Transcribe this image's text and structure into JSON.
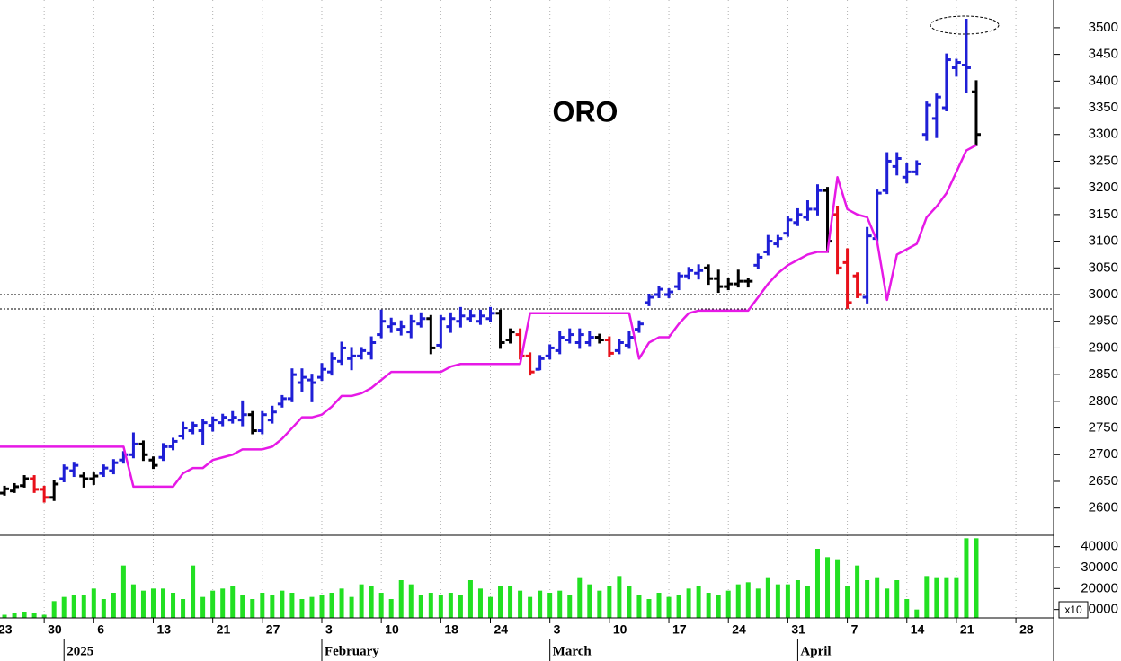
{
  "chart_data": {
    "type": "ohlc",
    "title": "ORO",
    "categories": [
      "23",
      null,
      null,
      null,
      null,
      "30",
      null,
      null,
      null,
      null,
      "6",
      null,
      null,
      null,
      null,
      null,
      "13",
      null,
      null,
      null,
      null,
      null,
      "21",
      null,
      null,
      null,
      null,
      "27",
      null,
      null,
      null,
      null,
      null,
      "3",
      null,
      null,
      null,
      null,
      null,
      "10",
      null,
      null,
      null,
      null,
      null,
      "18",
      null,
      null,
      null,
      null,
      "24",
      null,
      null,
      null,
      null,
      null,
      "3",
      null,
      null,
      null,
      null,
      null,
      "10",
      null,
      null,
      null,
      null,
      null,
      "17",
      null,
      null,
      null,
      null,
      null,
      "24",
      null,
      null,
      null,
      null,
      null,
      "31",
      null,
      null,
      null,
      null,
      null,
      "7",
      null,
      null,
      null,
      null,
      null,
      "14",
      null,
      null,
      null,
      null,
      "21",
      null,
      null,
      null,
      null,
      null,
      "28",
      null,
      null,
      null
    ],
    "months": [
      null,
      null,
      null,
      null,
      null,
      null,
      null,
      "2025",
      null,
      null,
      null,
      null,
      null,
      null,
      null,
      null,
      null,
      null,
      null,
      null,
      null,
      null,
      null,
      null,
      null,
      null,
      null,
      null,
      null,
      null,
      null,
      null,
      null,
      "February",
      null,
      null,
      null,
      null,
      null,
      null,
      null,
      null,
      null,
      null,
      null,
      null,
      null,
      null,
      null,
      null,
      null,
      null,
      null,
      null,
      null,
      null,
      "March",
      null,
      null,
      null,
      null,
      null,
      null,
      null,
      null,
      null,
      null,
      null,
      null,
      null,
      null,
      null,
      null,
      null,
      null,
      null,
      null,
      null,
      null,
      null,
      null,
      "April",
      null,
      null,
      null,
      null,
      null,
      null,
      null,
      null,
      null,
      null,
      null,
      null,
      null,
      null,
      null,
      null,
      null,
      null,
      null,
      null,
      null,
      null,
      null,
      null,
      null,
      null
    ],
    "open": [
      2630,
      2628,
      2632,
      2642,
      2655,
      2635,
      2620,
      2655,
      2670,
      2660,
      2655,
      2665,
      2670,
      2690,
      2700,
      2720,
      2690,
      2695,
      2715,
      2735,
      2745,
      2745,
      2755,
      2760,
      2765,
      2765,
      2775,
      2745,
      2765,
      2795,
      2805,
      2835,
      2840,
      2845,
      2855,
      2875,
      2880,
      2885,
      2890,
      2925,
      2940,
      2935,
      2930,
      2945,
      2955,
      2905,
      2940,
      2950,
      2955,
      2950,
      2955,
      2965,
      2915,
      2925,
      2885,
      2860,
      2885,
      2895,
      2915,
      2910,
      2910,
      2920,
      2915,
      2895,
      2905,
      2935,
      2985,
      3000,
      3000,
      3015,
      3035,
      3040,
      3050,
      3030,
      3015,
      3020,
      3025,
      3055,
      3080,
      3095,
      3115,
      3135,
      3145,
      3160,
      3195,
      3150,
      3060,
      3035,
      2995,
      3105,
      3195,
      3240,
      3220,
      3230,
      3300,
      3330,
      3350,
      3425,
      3430,
      3380,
      null,
      null,
      null,
      null,
      null,
      null,
      null
    ],
    "high": [
      2640,
      2640,
      2645,
      2660,
      2660,
      2640,
      2650,
      2680,
      2685,
      2665,
      2665,
      2680,
      2690,
      2705,
      2740,
      2725,
      2695,
      2720,
      2730,
      2760,
      2760,
      2765,
      2770,
      2775,
      2780,
      2800,
      2780,
      2780,
      2790,
      2810,
      2860,
      2860,
      2850,
      2870,
      2890,
      2910,
      2900,
      2900,
      2920,
      2970,
      2955,
      2950,
      2960,
      2965,
      2960,
      2960,
      2965,
      2975,
      2970,
      2970,
      2975,
      2970,
      2935,
      2935,
      2890,
      2885,
      2905,
      2930,
      2935,
      2935,
      2930,
      2925,
      2920,
      2915,
      2930,
      2950,
      3000,
      3015,
      3010,
      3040,
      3050,
      3055,
      3055,
      3045,
      3030,
      3045,
      3030,
      3075,
      3110,
      3110,
      3145,
      3160,
      3175,
      3205,
      3200,
      3165,
      3085,
      3040,
      3125,
      3195,
      3265,
      3265,
      3245,
      3250,
      3360,
      3375,
      3450,
      3440,
      3515,
      3400,
      null,
      null,
      null,
      null,
      null,
      null,
      null
    ],
    "low": [
      2620,
      2625,
      2630,
      2640,
      2630,
      2612,
      2615,
      2650,
      2660,
      2640,
      2645,
      2660,
      2665,
      2685,
      2695,
      2690,
      2675,
      2690,
      2710,
      2730,
      2740,
      2720,
      2745,
      2755,
      2760,
      2755,
      2740,
      2740,
      2760,
      2790,
      2800,
      2820,
      2800,
      2840,
      2850,
      2870,
      2860,
      2880,
      2880,
      2920,
      2930,
      2925,
      2920,
      2940,
      2890,
      2900,
      2930,
      2940,
      2950,
      2945,
      2950,
      2900,
      2910,
      2880,
      2850,
      2860,
      2880,
      2890,
      2910,
      2900,
      2905,
      2910,
      2885,
      2890,
      2900,
      2930,
      2980,
      2995,
      2995,
      3010,
      3030,
      3030,
      3020,
      3005,
      3010,
      3015,
      3015,
      3050,
      3075,
      3090,
      3110,
      3130,
      3140,
      3150,
      3080,
      3040,
      2975,
      2995,
      2985,
      3100,
      3190,
      3225,
      3210,
      3225,
      3290,
      3295,
      3345,
      3410,
      3380,
      3280,
      null,
      null,
      null,
      null,
      null,
      null,
      null
    ],
    "close": [
      2635,
      2636,
      2640,
      2655,
      2635,
      2620,
      2645,
      2675,
      2680,
      2655,
      2660,
      2675,
      2685,
      2700,
      2720,
      2700,
      2680,
      2715,
      2725,
      2750,
      2755,
      2760,
      2765,
      2770,
      2770,
      2775,
      2745,
      2775,
      2780,
      2805,
      2850,
      2845,
      2835,
      2860,
      2880,
      2900,
      2885,
      2895,
      2910,
      2950,
      2945,
      2940,
      2950,
      2955,
      2900,
      2955,
      2955,
      2960,
      2960,
      2960,
      2965,
      2910,
      2930,
      2885,
      2855,
      2880,
      2900,
      2920,
      2925,
      2925,
      2920,
      2915,
      2890,
      2910,
      2920,
      2945,
      2995,
      3010,
      3005,
      3035,
      3045,
      3045,
      3030,
      3015,
      3020,
      3025,
      3025,
      3070,
      3100,
      3105,
      3140,
      3150,
      3160,
      3195,
      3100,
      3050,
      2985,
      3000,
      3110,
      3190,
      3250,
      3255,
      3230,
      3245,
      3355,
      3370,
      3440,
      3435,
      3425,
      3300,
      null,
      null,
      null,
      null,
      null,
      null,
      null
    ],
    "colors": [
      "#000000",
      "#000000",
      "#000000",
      "#000000",
      "#e8101a",
      "#e8101a",
      "#000000",
      "#1f1fd6",
      "#1f1fd6",
      "#000000",
      "#000000",
      "#1f1fd6",
      "#1f1fd6",
      "#1f1fd6",
      "#1f1fd6",
      "#000000",
      "#000000",
      "#1f1fd6",
      "#1f1fd6",
      "#1f1fd6",
      "#1f1fd6",
      "#1f1fd6",
      "#1f1fd6",
      "#1f1fd6",
      "#1f1fd6",
      "#1f1fd6",
      "#000000",
      "#1f1fd6",
      "#1f1fd6",
      "#1f1fd6",
      "#1f1fd6",
      "#1f1fd6",
      "#1f1fd6",
      "#1f1fd6",
      "#1f1fd6",
      "#1f1fd6",
      "#1f1fd6",
      "#1f1fd6",
      "#1f1fd6",
      "#1f1fd6",
      "#1f1fd6",
      "#1f1fd6",
      "#1f1fd6",
      "#1f1fd6",
      "#000000",
      "#1f1fd6",
      "#1f1fd6",
      "#1f1fd6",
      "#1f1fd6",
      "#1f1fd6",
      "#1f1fd6",
      "#000000",
      "#000000",
      "#e8101a",
      "#e8101a",
      "#1f1fd6",
      "#1f1fd6",
      "#1f1fd6",
      "#1f1fd6",
      "#1f1fd6",
      "#1f1fd6",
      "#000000",
      "#e8101a",
      "#1f1fd6",
      "#1f1fd6",
      "#1f1fd6",
      "#1f1fd6",
      "#1f1fd6",
      "#1f1fd6",
      "#1f1fd6",
      "#1f1fd6",
      "#1f1fd6",
      "#000000",
      "#000000",
      "#000000",
      "#000000",
      "#000000",
      "#1f1fd6",
      "#1f1fd6",
      "#1f1fd6",
      "#1f1fd6",
      "#1f1fd6",
      "#1f1fd6",
      "#1f1fd6",
      "#000000",
      "#e8101a",
      "#e8101a",
      "#e8101a",
      "#1f1fd6",
      "#1f1fd6",
      "#1f1fd6",
      "#1f1fd6",
      "#1f1fd6",
      "#1f1fd6",
      "#1f1fd6",
      "#1f1fd6",
      "#1f1fd6",
      "#1f1fd6",
      "#1f1fd6",
      "#000000",
      null,
      null,
      null,
      null,
      null,
      null,
      null
    ],
    "line": {
      "color": "#e619e6",
      "values": [
        2715,
        2715,
        2715,
        2715,
        2715,
        2715,
        2715,
        2715,
        2715,
        2715,
        2715,
        2715,
        2715,
        2715,
        2640,
        2640,
        2640,
        2640,
        2640,
        2665,
        2675,
        2675,
        2690,
        2695,
        2700,
        2710,
        2710,
        2710,
        2715,
        2730,
        2750,
        2770,
        2770,
        2775,
        2790,
        2810,
        2810,
        2815,
        2825,
        2840,
        2855,
        2855,
        2855,
        2855,
        2855,
        2855,
        2865,
        2870,
        2870,
        2870,
        2870,
        2870,
        2870,
        2870,
        2965,
        2965,
        2965,
        2965,
        2965,
        2965,
        2965,
        2965,
        2965,
        2965,
        2965,
        2880,
        2910,
        2920,
        2920,
        2945,
        2965,
        2970,
        2970,
        2970,
        2970,
        2970,
        2970,
        2995,
        3020,
        3040,
        3055,
        3065,
        3075,
        3080,
        3080,
        3220,
        3160,
        3150,
        3145,
        3100,
        2990,
        3075,
        3085,
        3095,
        3145,
        3165,
        3190,
        3230,
        3270,
        3280,
        null,
        null,
        null,
        null,
        null,
        null,
        null
      ]
    },
    "hlines": [
      3000,
      2973
    ],
    "ylim": [
      2549,
      3552
    ],
    "yticks": [
      2600,
      2650,
      2700,
      2750,
      2800,
      2850,
      2900,
      2950,
      3000,
      3050,
      3100,
      3150,
      3200,
      3250,
      3300,
      3350,
      3400,
      3450,
      3500
    ],
    "grid": true,
    "volume": {
      "type": "bar",
      "color": "#22e022",
      "values": [
        6500,
        7500,
        8500,
        9000,
        8500,
        7500,
        14000,
        16000,
        17000,
        17000,
        20000,
        15000,
        18000,
        31000,
        22000,
        19000,
        20000,
        20000,
        18000,
        15000,
        31000,
        16000,
        19000,
        20000,
        21000,
        17000,
        15000,
        18000,
        17000,
        19000,
        18000,
        15000,
        16000,
        17000,
        18000,
        20000,
        16000,
        22000,
        21000,
        18000,
        15000,
        24000,
        22000,
        17000,
        18000,
        17000,
        18000,
        17000,
        24000,
        20000,
        16000,
        21000,
        21000,
        19000,
        16000,
        19000,
        18000,
        19000,
        17000,
        25000,
        22000,
        19000,
        21000,
        26000,
        21000,
        17000,
        15000,
        18000,
        16000,
        17000,
        20000,
        21000,
        18000,
        17000,
        19000,
        22000,
        23000,
        20000,
        25000,
        22000,
        22000,
        24000,
        21000,
        39000,
        35000,
        34000,
        21000,
        31000,
        24000,
        25000,
        20000,
        24000,
        15000,
        10000,
        26000,
        25000,
        25000,
        25000,
        44000,
        44000,
        null,
        null,
        null,
        null,
        null,
        null,
        null
      ],
      "ylim": [
        6000,
        45000
      ],
      "yticks": [
        10000,
        20000,
        30000,
        40000
      ],
      "multiplier": "x10"
    }
  }
}
